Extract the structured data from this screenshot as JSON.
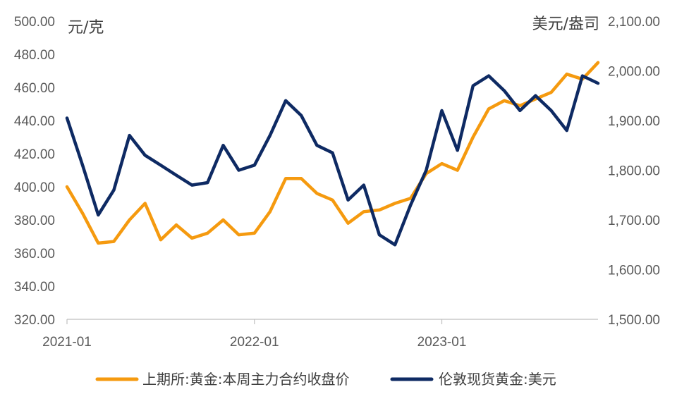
{
  "chart_data": {
    "type": "line",
    "title": "",
    "left_axis": {
      "unit_label": "元/克",
      "range": [
        320,
        500
      ],
      "ticks": [
        320,
        340,
        360,
        380,
        400,
        420,
        440,
        460,
        480,
        500
      ],
      "tick_labels": [
        "320.00",
        "340.00",
        "360.00",
        "380.00",
        "400.00",
        "420.00",
        "440.00",
        "460.00",
        "480.00",
        "500.00"
      ]
    },
    "right_axis": {
      "unit_label": "美元/盎司",
      "range": [
        1500,
        2100
      ],
      "ticks": [
        1500,
        1600,
        1700,
        1800,
        1900,
        2000,
        2100
      ],
      "tick_labels": [
        "1,500.00",
        "1,600.00",
        "1,700.00",
        "1,800.00",
        "1,900.00",
        "2,000.00",
        "2,100.00"
      ]
    },
    "x_axis": {
      "range": [
        "2021-01",
        "2023-11"
      ],
      "ticks": [
        "2021-01",
        "2022-01",
        "2023-01"
      ],
      "tick_labels": [
        "2021-01",
        "2022-01",
        "2023-01"
      ]
    },
    "grid": false,
    "legend_position": "bottom",
    "series": [
      {
        "name": "上期所:黄金:本周主力合约收盘价",
        "axis": "left",
        "color": "#F59A0F",
        "points": [
          [
            "2021-01",
            400
          ],
          [
            "2021-02",
            384
          ],
          [
            "2021-03",
            366
          ],
          [
            "2021-04",
            367
          ],
          [
            "2021-05",
            380
          ],
          [
            "2021-06",
            390
          ],
          [
            "2021-07",
            368
          ],
          [
            "2021-08",
            377
          ],
          [
            "2021-09",
            369
          ],
          [
            "2021-10",
            372
          ],
          [
            "2021-11",
            380
          ],
          [
            "2021-12",
            371
          ],
          [
            "2022-01",
            372
          ],
          [
            "2022-02",
            385
          ],
          [
            "2022-03",
            405
          ],
          [
            "2022-04",
            405
          ],
          [
            "2022-05",
            396
          ],
          [
            "2022-06",
            392
          ],
          [
            "2022-07",
            378
          ],
          [
            "2022-08",
            385
          ],
          [
            "2022-09",
            386
          ],
          [
            "2022-10",
            390
          ],
          [
            "2022-11",
            393
          ],
          [
            "2022-12",
            408
          ],
          [
            "2023-01",
            414
          ],
          [
            "2023-02",
            410
          ],
          [
            "2023-03",
            430
          ],
          [
            "2023-04",
            447
          ],
          [
            "2023-05",
            452
          ],
          [
            "2023-06",
            449
          ],
          [
            "2023-07",
            453
          ],
          [
            "2023-08",
            457
          ],
          [
            "2023-09",
            468
          ],
          [
            "2023-10",
            465
          ],
          [
            "2023-11",
            475
          ]
        ]
      },
      {
        "name": "伦敦现货黄金:美元",
        "axis": "right",
        "color": "#0E2A63",
        "points": [
          [
            "2021-01",
            1905
          ],
          [
            "2021-02",
            1810
          ],
          [
            "2021-03",
            1710
          ],
          [
            "2021-04",
            1760
          ],
          [
            "2021-05",
            1870
          ],
          [
            "2021-06",
            1830
          ],
          [
            "2021-07",
            1810
          ],
          [
            "2021-08",
            1790
          ],
          [
            "2021-09",
            1770
          ],
          [
            "2021-10",
            1775
          ],
          [
            "2021-11",
            1850
          ],
          [
            "2021-12",
            1800
          ],
          [
            "2022-01",
            1810
          ],
          [
            "2022-02",
            1870
          ],
          [
            "2022-03",
            1940
          ],
          [
            "2022-04",
            1910
          ],
          [
            "2022-05",
            1850
          ],
          [
            "2022-06",
            1835
          ],
          [
            "2022-07",
            1740
          ],
          [
            "2022-08",
            1770
          ],
          [
            "2022-09",
            1670
          ],
          [
            "2022-10",
            1650
          ],
          [
            "2022-11",
            1730
          ],
          [
            "2022-12",
            1800
          ],
          [
            "2023-01",
            1920
          ],
          [
            "2023-02",
            1840
          ],
          [
            "2023-03",
            1970
          ],
          [
            "2023-04",
            1990
          ],
          [
            "2023-05",
            1960
          ],
          [
            "2023-06",
            1920
          ],
          [
            "2023-07",
            1950
          ],
          [
            "2023-08",
            1920
          ],
          [
            "2023-09",
            1880
          ],
          [
            "2023-10",
            1990
          ],
          [
            "2023-11",
            1975
          ]
        ]
      }
    ]
  }
}
